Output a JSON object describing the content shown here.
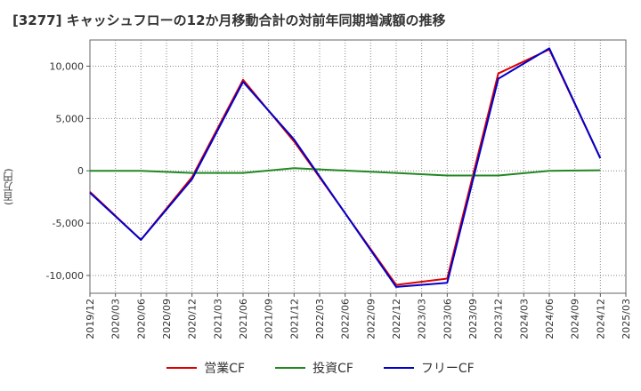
{
  "chart_data": {
    "type": "line",
    "title": "[3277]  キャッシュフローの12か月移動合計の対前年同期増減額の推移",
    "ylabel": "(百万円)",
    "xlabel": "",
    "ylim": [
      -11700,
      12500
    ],
    "yticks": [
      10000,
      5000,
      0,
      -5000,
      -10000
    ],
    "ytick_labels": [
      "10,000",
      "5,000",
      "0",
      "-5,000",
      "-10,000"
    ],
    "x_labels": [
      "2019/12",
      "2020/03",
      "2020/06",
      "2020/09",
      "2020/12",
      "2021/03",
      "2021/06",
      "2021/09",
      "2021/12",
      "2022/03",
      "2022/06",
      "2022/09",
      "2022/12",
      "2023/03",
      "2023/06",
      "2023/09",
      "2023/12",
      "2024/03",
      "2024/06",
      "2024/09",
      "2024/12",
      "2025/03"
    ],
    "series": [
      {
        "name": "営業CF",
        "color": "#dd0000",
        "values": [
          -2000,
          null,
          -6600,
          null,
          -600,
          null,
          8700,
          null,
          2800,
          null,
          null,
          null,
          -10900,
          null,
          -10300,
          null,
          9300,
          null,
          11600,
          null,
          1200,
          null
        ]
      },
      {
        "name": "投資CF",
        "color": "#228822",
        "values": [
          0,
          null,
          0,
          null,
          -200,
          null,
          -200,
          null,
          250,
          null,
          null,
          null,
          -200,
          null,
          -450,
          null,
          -450,
          null,
          0,
          null,
          50,
          null
        ]
      },
      {
        "name": "フリーCF",
        "color": "#0000cc",
        "values": [
          -2100,
          null,
          -6600,
          null,
          -800,
          null,
          8500,
          null,
          3000,
          null,
          null,
          null,
          -11100,
          null,
          -10700,
          null,
          8800,
          null,
          11700,
          null,
          1200,
          null
        ]
      }
    ],
    "grid": true,
    "legend_position": "bottom"
  }
}
